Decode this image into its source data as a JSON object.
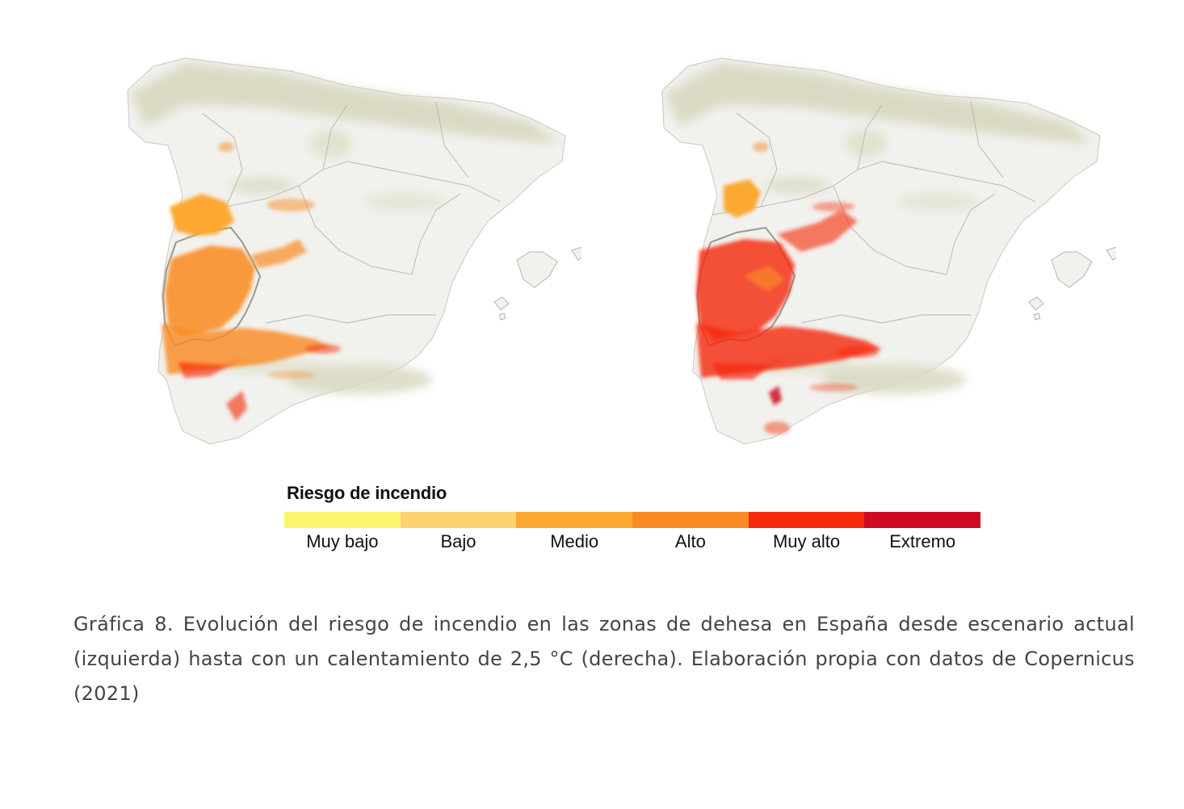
{
  "legend": {
    "title": "Riesgo de incendio",
    "classes": [
      {
        "label": "Muy bajo",
        "color": "#fbf570"
      },
      {
        "label": "Bajo",
        "color": "#fcd36e"
      },
      {
        "label": "Medio",
        "color": "#fca830"
      },
      {
        "label": "Alto",
        "color": "#fa8a22"
      },
      {
        "label": "Muy alto",
        "color": "#f52a0a"
      },
      {
        "label": "Extremo",
        "color": "#cd0a22"
      }
    ]
  },
  "caption": "Gráfica 8. Evolución del riesgo de incendio en las zonas de dehesa en España desde escenario actual (izquierda) hasta con un calentamiento de 2,5 °C (derecha). Elaboración propia con datos de Copernicus (2021)",
  "colors": {
    "land": "#f1f1ee",
    "relief": "#d9d9c2",
    "border": "#a8a8a2"
  }
}
